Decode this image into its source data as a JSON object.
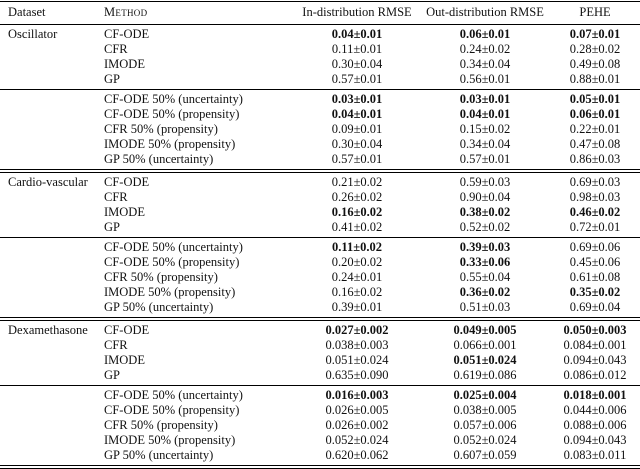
{
  "table": {
    "columns": [
      "Dataset",
      "Method",
      "In-distribution RMSE",
      "Out-distribution RMSE",
      "PEHE"
    ],
    "groups": [
      {
        "dataset": "Oscillator",
        "blocks": [
          {
            "rows": [
              {
                "method": "CF-ODE",
                "in": {
                  "v": "0.04±0.01",
                  "b": true
                },
                "out": {
                  "v": "0.06±0.01",
                  "b": true
                },
                "pehe": {
                  "v": "0.07±0.01",
                  "b": true
                }
              },
              {
                "method": "CFR",
                "in": {
                  "v": "0.11±0.01",
                  "b": false
                },
                "out": {
                  "v": "0.24±0.02",
                  "b": false
                },
                "pehe": {
                  "v": "0.28±0.02",
                  "b": false
                }
              },
              {
                "method": "IMODE",
                "in": {
                  "v": "0.30±0.04",
                  "b": false
                },
                "out": {
                  "v": "0.34±0.04",
                  "b": false
                },
                "pehe": {
                  "v": "0.49±0.08",
                  "b": false
                }
              },
              {
                "method": "GP",
                "in": {
                  "v": "0.57±0.01",
                  "b": false
                },
                "out": {
                  "v": "0.56±0.01",
                  "b": false
                },
                "pehe": {
                  "v": "0.88±0.01",
                  "b": false
                }
              }
            ]
          },
          {
            "rows": [
              {
                "method": "CF-ODE 50% (uncertainty)",
                "in": {
                  "v": "0.03±0.01",
                  "b": true
                },
                "out": {
                  "v": "0.03±0.01",
                  "b": true
                },
                "pehe": {
                  "v": "0.05±0.01",
                  "b": true
                }
              },
              {
                "method": "CF-ODE 50% (propensity)",
                "in": {
                  "v": "0.04±0.01",
                  "b": true
                },
                "out": {
                  "v": "0.04±0.01",
                  "b": true
                },
                "pehe": {
                  "v": "0.06±0.01",
                  "b": true
                }
              },
              {
                "method": "CFR 50% (propensity)",
                "in": {
                  "v": "0.09±0.01",
                  "b": false
                },
                "out": {
                  "v": "0.15±0.02",
                  "b": false
                },
                "pehe": {
                  "v": "0.22±0.01",
                  "b": false
                }
              },
              {
                "method": "IMODE 50% (propensity)",
                "in": {
                  "v": "0.30±0.04",
                  "b": false
                },
                "out": {
                  "v": "0.34±0.04",
                  "b": false
                },
                "pehe": {
                  "v": "0.47±0.08",
                  "b": false
                }
              },
              {
                "method": "GP 50% (uncertainty)",
                "in": {
                  "v": "0.57±0.01",
                  "b": false
                },
                "out": {
                  "v": "0.57±0.01",
                  "b": false
                },
                "pehe": {
                  "v": "0.86±0.03",
                  "b": false
                }
              }
            ]
          }
        ]
      },
      {
        "dataset": "Cardio-vascular",
        "blocks": [
          {
            "rows": [
              {
                "method": "CF-ODE",
                "in": {
                  "v": "0.21±0.02",
                  "b": false
                },
                "out": {
                  "v": "0.59±0.03",
                  "b": false
                },
                "pehe": {
                  "v": "0.69±0.03",
                  "b": false
                }
              },
              {
                "method": "CFR",
                "in": {
                  "v": "0.26±0.02",
                  "b": false
                },
                "out": {
                  "v": "0.90±0.04",
                  "b": false
                },
                "pehe": {
                  "v": "0.98±0.03",
                  "b": false
                }
              },
              {
                "method": "IMODE",
                "in": {
                  "v": "0.16±0.02",
                  "b": true
                },
                "out": {
                  "v": "0.38±0.02",
                  "b": true
                },
                "pehe": {
                  "v": "0.46±0.02",
                  "b": true
                }
              },
              {
                "method": "GP",
                "in": {
                  "v": "0.41±0.02",
                  "b": false
                },
                "out": {
                  "v": "0.52±0.02",
                  "b": false
                },
                "pehe": {
                  "v": "0.72±0.01",
                  "b": false
                }
              }
            ]
          },
          {
            "rows": [
              {
                "method": "CF-ODE 50% (uncertainty)",
                "in": {
                  "v": "0.11±0.02",
                  "b": true
                },
                "out": {
                  "v": "0.39±0.03",
                  "b": true
                },
                "pehe": {
                  "v": "0.69±0.06",
                  "b": false
                }
              },
              {
                "method": "CF-ODE 50% (propensity)",
                "in": {
                  "v": "0.20±0.02",
                  "b": false
                },
                "out": {
                  "v": "0.33±0.06",
                  "b": true
                },
                "pehe": {
                  "v": "0.45±0.06",
                  "b": false
                }
              },
              {
                "method": "CFR 50% (propensity)",
                "in": {
                  "v": "0.24±0.01",
                  "b": false
                },
                "out": {
                  "v": "0.55±0.04",
                  "b": false
                },
                "pehe": {
                  "v": "0.61±0.08",
                  "b": false
                }
              },
              {
                "method": "IMODE 50% (propensity)",
                "in": {
                  "v": "0.16±0.02",
                  "b": false
                },
                "out": {
                  "v": "0.36±0.02",
                  "b": true
                },
                "pehe": {
                  "v": "0.35±0.02",
                  "b": true
                }
              },
              {
                "method": "GP 50% (uncertainty)",
                "in": {
                  "v": "0.39±0.01",
                  "b": false
                },
                "out": {
                  "v": "0.51±0.03",
                  "b": false
                },
                "pehe": {
                  "v": "0.69±0.04",
                  "b": false
                }
              }
            ]
          }
        ]
      },
      {
        "dataset": "Dexamethasone",
        "blocks": [
          {
            "rows": [
              {
                "method": "CF-ODE",
                "in": {
                  "v": "0.027±0.002",
                  "b": true
                },
                "out": {
                  "v": "0.049±0.005",
                  "b": true
                },
                "pehe": {
                  "v": "0.050±0.003",
                  "b": true
                }
              },
              {
                "method": "CFR",
                "in": {
                  "v": "0.038±0.003",
                  "b": false
                },
                "out": {
                  "v": "0.066±0.001",
                  "b": false
                },
                "pehe": {
                  "v": "0.084±0.001",
                  "b": false
                }
              },
              {
                "method": "IMODE",
                "in": {
                  "v": "0.051±0.024",
                  "b": false
                },
                "out": {
                  "v": "0.051±0.024",
                  "b": true
                },
                "pehe": {
                  "v": "0.094±0.043",
                  "b": false
                }
              },
              {
                "method": "GP",
                "in": {
                  "v": "0.635±0.090",
                  "b": false
                },
                "out": {
                  "v": "0.619±0.086",
                  "b": false
                },
                "pehe": {
                  "v": "0.086±0.012",
                  "b": false
                }
              }
            ]
          },
          {
            "rows": [
              {
                "method": "CF-ODE 50% (uncertainty)",
                "in": {
                  "v": "0.016±0.003",
                  "b": true
                },
                "out": {
                  "v": "0.025±0.004",
                  "b": true
                },
                "pehe": {
                  "v": "0.018±0.001",
                  "b": true
                }
              },
              {
                "method": "CF-ODE 50% (propensity)",
                "in": {
                  "v": "0.026±0.005",
                  "b": false
                },
                "out": {
                  "v": "0.038±0.005",
                  "b": false
                },
                "pehe": {
                  "v": "0.044±0.006",
                  "b": false
                }
              },
              {
                "method": "CFR 50% (propensity)",
                "in": {
                  "v": "0.026±0.002",
                  "b": false
                },
                "out": {
                  "v": "0.057±0.006",
                  "b": false
                },
                "pehe": {
                  "v": "0.088±0.006",
                  "b": false
                }
              },
              {
                "method": "IMODE 50% (propensity)",
                "in": {
                  "v": "0.052±0.024",
                  "b": false
                },
                "out": {
                  "v": "0.052±0.024",
                  "b": false
                },
                "pehe": {
                  "v": "0.094±0.043",
                  "b": false
                }
              },
              {
                "method": "GP 50% (uncertainty)",
                "in": {
                  "v": "0.620±0.062",
                  "b": false
                },
                "out": {
                  "v": "0.607±0.059",
                  "b": false
                },
                "pehe": {
                  "v": "0.083±0.011",
                  "b": false
                }
              }
            ]
          }
        ]
      }
    ]
  }
}
